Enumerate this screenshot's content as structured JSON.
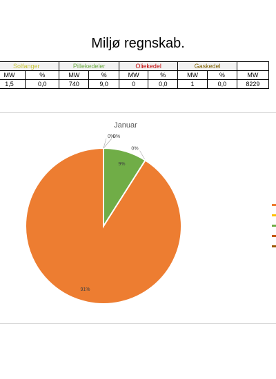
{
  "page": {
    "title": "Miljø regnskab."
  },
  "table": {
    "groups": [
      {
        "label": "Solfanger",
        "color": "#c8c53a"
      },
      {
        "label": "Pillekedeler",
        "color": "#70ad47"
      },
      {
        "label": "Oliekedel",
        "color": "#c00000"
      },
      {
        "label": "Gaskedel",
        "color": "#7f6000"
      },
      {
        "label": "",
        "color": "#000000"
      }
    ],
    "units": [
      "MW",
      "%",
      "MW",
      "%",
      "MW",
      "%",
      "MW",
      "%",
      "MW"
    ],
    "values": [
      "1,5",
      "0,0",
      "740",
      "9,0",
      "0",
      "0,0",
      "1",
      "0,0",
      "8229"
    ]
  },
  "chart_data": {
    "type": "pie",
    "title": "Januar",
    "slices": [
      {
        "value": 91,
        "label": "91%",
        "color": "#ed7d31"
      },
      {
        "value": 0,
        "label": "0%",
        "color": "#ffc000"
      },
      {
        "value": 9,
        "label": "9%",
        "color": "#70ad47"
      },
      {
        "value": 0,
        "label": "0%",
        "color": "#c55a11"
      },
      {
        "value": 0,
        "label": "0%",
        "color": "#9c5700"
      }
    ],
    "legend_placement": "right"
  }
}
